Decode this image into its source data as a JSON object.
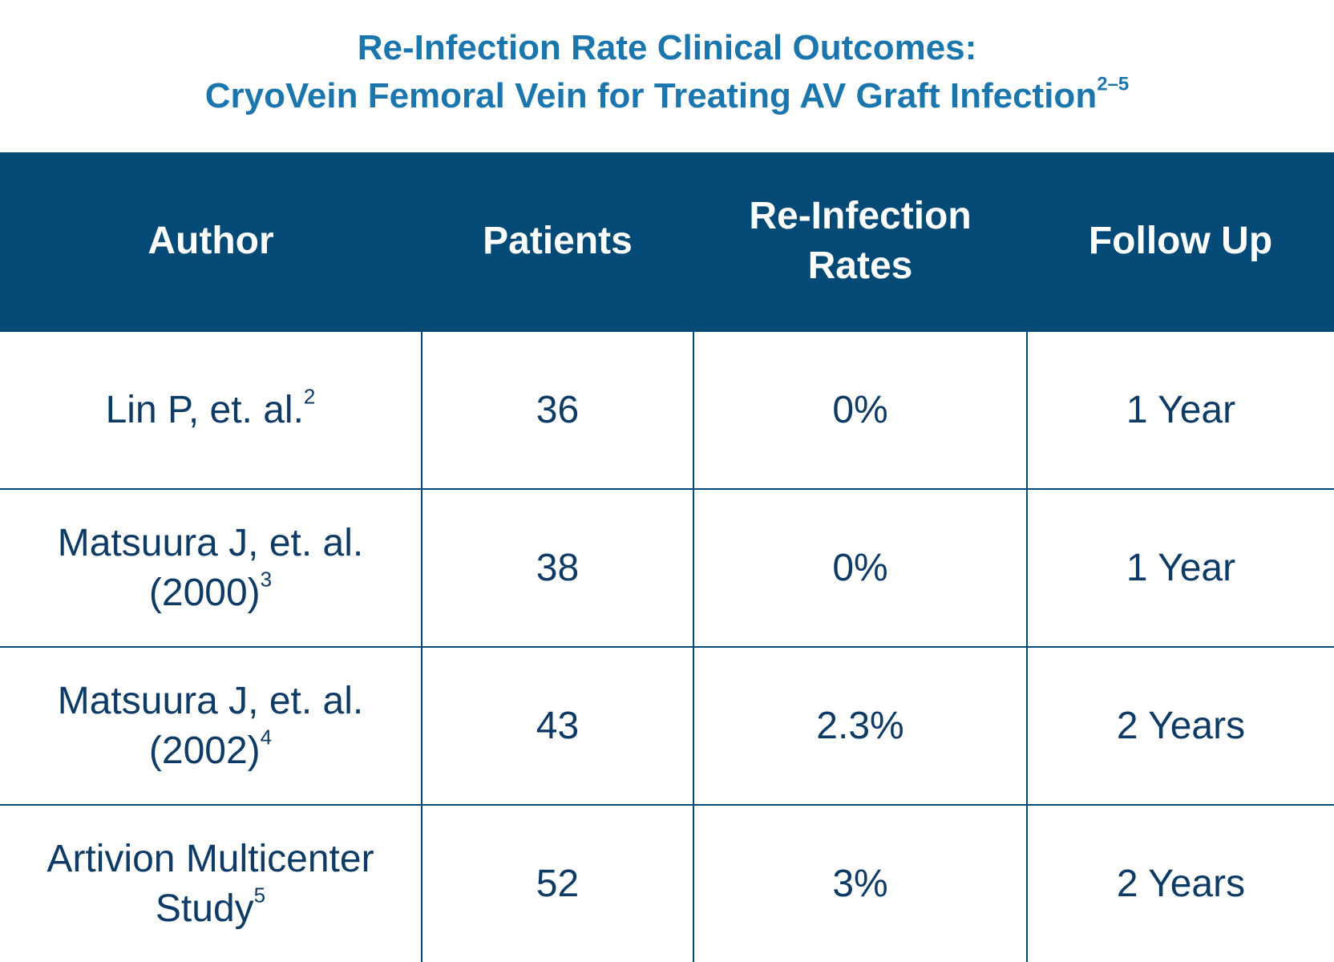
{
  "title": {
    "line1": "Re-Infection Rate Clinical Outcomes:",
    "line2": "CryoVein Femoral Vein for Treating AV Graft Infection",
    "line2_ref": "2–5"
  },
  "table": {
    "headers": [
      "Author",
      "Patients",
      "Re-Infection Rates",
      "Follow Up"
    ],
    "rows": [
      {
        "author_line1": "Lin P, et. al.",
        "author_line2": "",
        "author_ref": "2",
        "patients": "36",
        "rate": "0%",
        "follow_up": "1 Year"
      },
      {
        "author_line1": "Matsuura J, et. al.",
        "author_line2": "(2000)",
        "author_ref": "3",
        "patients": "38",
        "rate": "0%",
        "follow_up": "1 Year"
      },
      {
        "author_line1": "Matsuura J, et. al.",
        "author_line2": "(2002)",
        "author_ref": "4",
        "patients": "43",
        "rate": "2.3%",
        "follow_up": "2 Years"
      },
      {
        "author_line1": "Artivion Multicenter",
        "author_line2": "Study",
        "author_ref": "5",
        "patients": "52",
        "rate": "3%",
        "follow_up": "2 Years"
      }
    ]
  },
  "colors": {
    "title": "#1b76ad",
    "header_bg": "#034a77",
    "body_text": "#0d3b66"
  }
}
